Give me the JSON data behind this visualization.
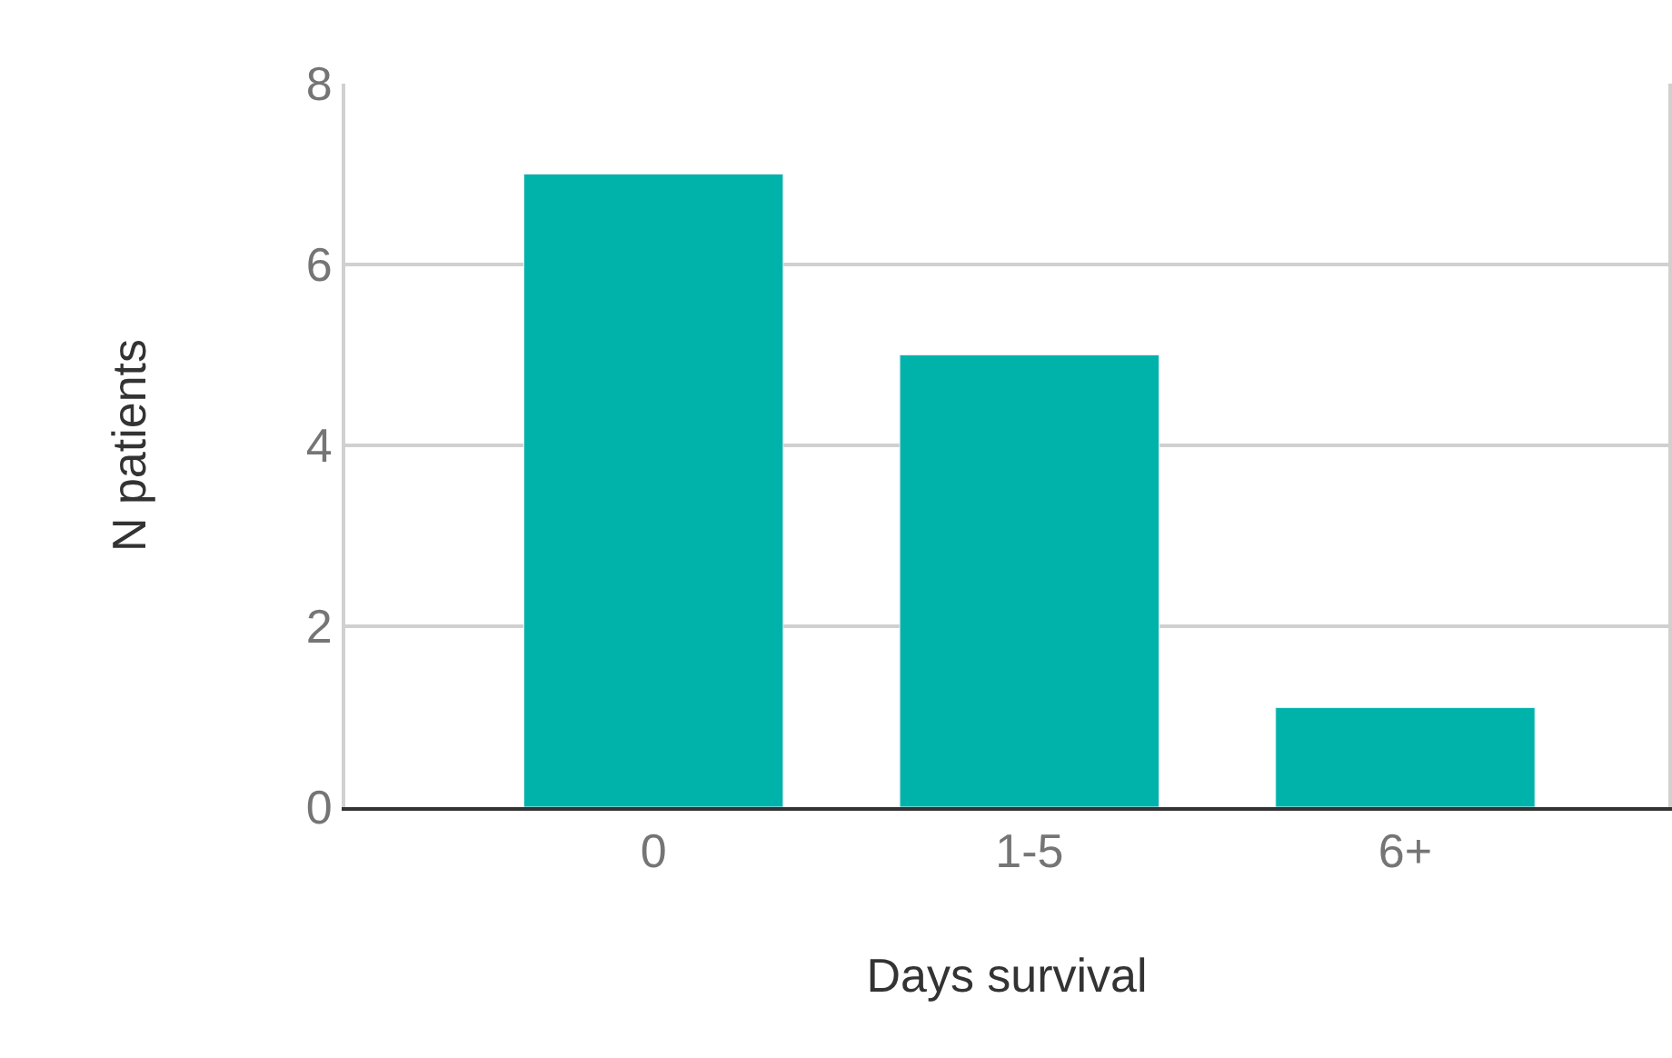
{
  "chart_data": {
    "type": "bar",
    "xlabel": "Days survival",
    "ylabel": "N patients",
    "categories": [
      "0",
      "1-5",
      "6+"
    ],
    "values": [
      7,
      5,
      1.1
    ],
    "color": "#00b3aa",
    "ylim": [
      0,
      8
    ],
    "yticks": [
      0,
      2,
      4,
      6,
      8
    ],
    "grid": "y"
  }
}
